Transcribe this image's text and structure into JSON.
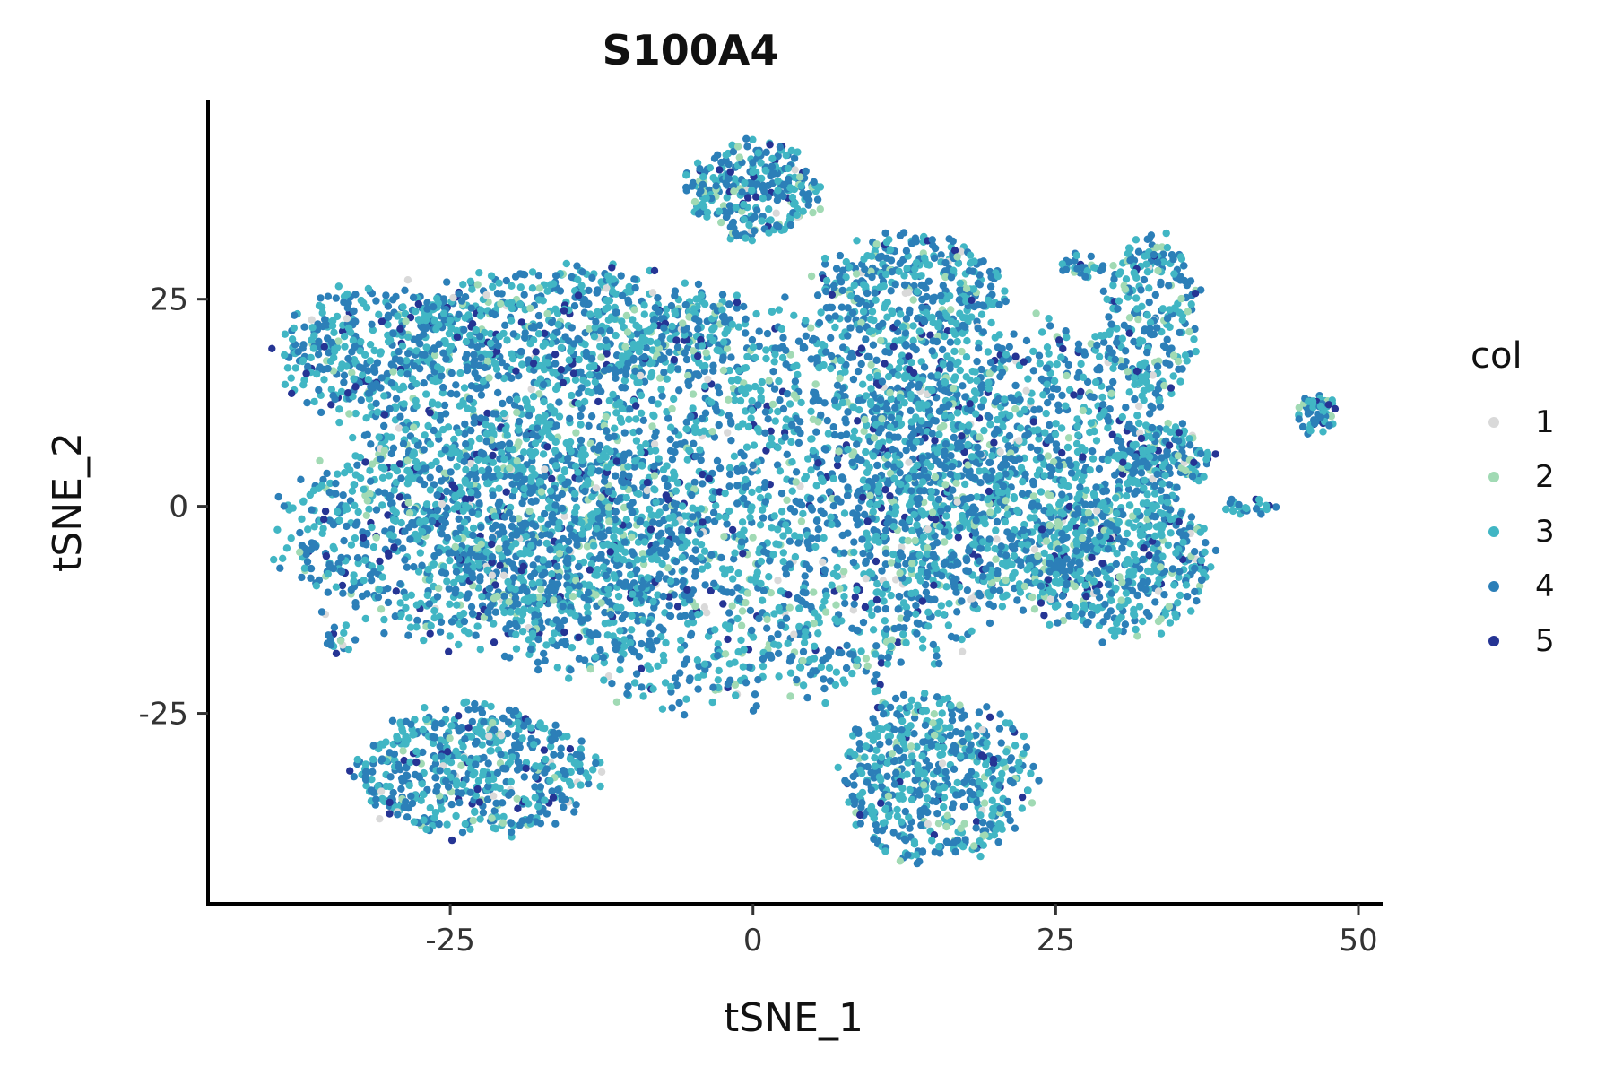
{
  "chart_data": {
    "type": "scatter",
    "title": "S100A4",
    "xlabel": "tSNE_1",
    "ylabel": "tSNE_2",
    "xlim": [
      -45,
      52
    ],
    "ylim": [
      -48,
      49
    ],
    "x_ticks": [
      -25,
      0,
      25,
      50
    ],
    "y_ticks": [
      -25,
      0,
      25
    ],
    "x_tick_labels": [
      "-25",
      "0",
      "25",
      "50"
    ],
    "y_tick_labels": [
      "-25",
      "0",
      "25"
    ],
    "grid": false,
    "legend": {
      "title": "col",
      "position": "right",
      "entries": [
        {
          "label": "1",
          "color": "#d9d9d9"
        },
        {
          "label": "2",
          "color": "#a1dab4"
        },
        {
          "label": "3",
          "color": "#41b6c4"
        },
        {
          "label": "4",
          "color": "#2c7fb8"
        },
        {
          "label": "5",
          "color": "#253494"
        }
      ]
    },
    "color_weights": [
      0.015,
      0.07,
      0.42,
      0.44,
      0.055
    ],
    "clusters": [
      {
        "cx": -2,
        "cy": 0,
        "rx": 26,
        "ry": 24,
        "n": 2600
      },
      {
        "cx": -22,
        "cy": -3,
        "rx": 17,
        "ry": 14,
        "n": 1100
      },
      {
        "cx": -30,
        "cy": 18,
        "rx": 9,
        "ry": 9,
        "n": 450
      },
      {
        "cx": -15,
        "cy": 22,
        "rx": 14,
        "ry": 7,
        "n": 500
      },
      {
        "cx": 0,
        "cy": 38,
        "rx": 5.5,
        "ry": 6,
        "n": 280
      },
      {
        "cx": 13,
        "cy": 26,
        "rx": 8,
        "ry": 7,
        "n": 380
      },
      {
        "cx": 22,
        "cy": 5,
        "rx": 14,
        "ry": 17,
        "n": 1100
      },
      {
        "cx": 30,
        "cy": -7,
        "rx": 8,
        "ry": 9,
        "n": 450
      },
      {
        "cx": 15,
        "cy": -33,
        "rx": 8,
        "ry": 10,
        "n": 550
      },
      {
        "cx": -23,
        "cy": -32,
        "rx": 10,
        "ry": 8,
        "n": 550
      },
      {
        "cx": 33,
        "cy": 23,
        "rx": 4,
        "ry": 10,
        "n": 230
      },
      {
        "cx": 34,
        "cy": 6,
        "rx": 4,
        "ry": 4,
        "n": 120
      },
      {
        "cx": 46.5,
        "cy": 11,
        "rx": 1.8,
        "ry": 2.5,
        "n": 50
      },
      {
        "cx": 41,
        "cy": 0,
        "rx": 2.5,
        "ry": 1,
        "n": 25
      },
      {
        "cx": 27,
        "cy": 29,
        "rx": 2,
        "ry": 1.5,
        "n": 30
      },
      {
        "cx": -34,
        "cy": -16,
        "rx": 1.5,
        "ry": 2,
        "n": 18
      }
    ]
  }
}
